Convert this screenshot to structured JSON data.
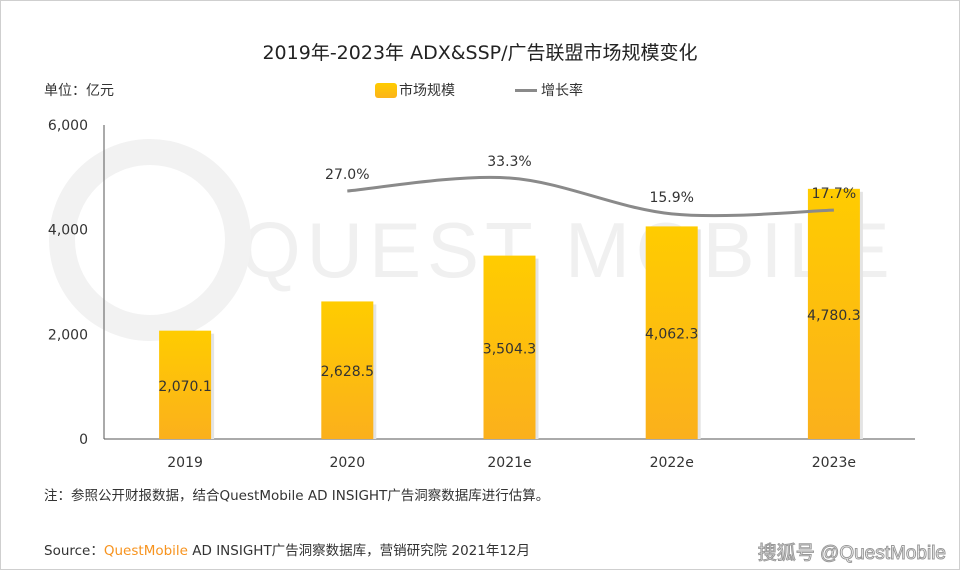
{
  "chart_data": {
    "type": "bar",
    "title": "2019年-2023年 ADX&SSP/广告联盟市场规模变化",
    "unit_label": "单位：亿元",
    "categories": [
      "2019",
      "2020",
      "2021e",
      "2022e",
      "2023e"
    ],
    "series": [
      {
        "name": "市场规模",
        "type": "bar",
        "values": [
          2070.1,
          2628.5,
          3504.3,
          4062.3,
          4780.3
        ],
        "labels": [
          "2,070.1",
          "2,628.5",
          "3,504.3",
          "4,062.3",
          "4,780.3"
        ],
        "color": "#fcc30a"
      },
      {
        "name": "增长率",
        "type": "line",
        "axis": "secondary-hidden",
        "values": [
          null,
          27.0,
          33.3,
          15.9,
          17.7
        ],
        "labels": [
          "",
          "27.0%",
          "33.3%",
          "15.9%",
          "17.7%"
        ],
        "color": "#8a8a8a"
      }
    ],
    "ylim": [
      0,
      6000
    ],
    "yticks": [
      "0",
      "2,000",
      "4,000",
      "6,000"
    ],
    "ytick_values": [
      0,
      2000,
      4000,
      6000
    ],
    "grid": false,
    "legend": "top-center"
  },
  "watermark": "QUEST MOBILE",
  "note": "注：参照公开财报数据，结合QuestMobile AD INSIGHT广告洞察数据库进行估算。",
  "source": {
    "prefix": "Source：",
    "brand": "QuestMobile",
    "rest": " AD INSIGHT广告洞察数据库，营销研究院 2021年12月"
  },
  "credit": "搜狐号 @QuestMobile"
}
